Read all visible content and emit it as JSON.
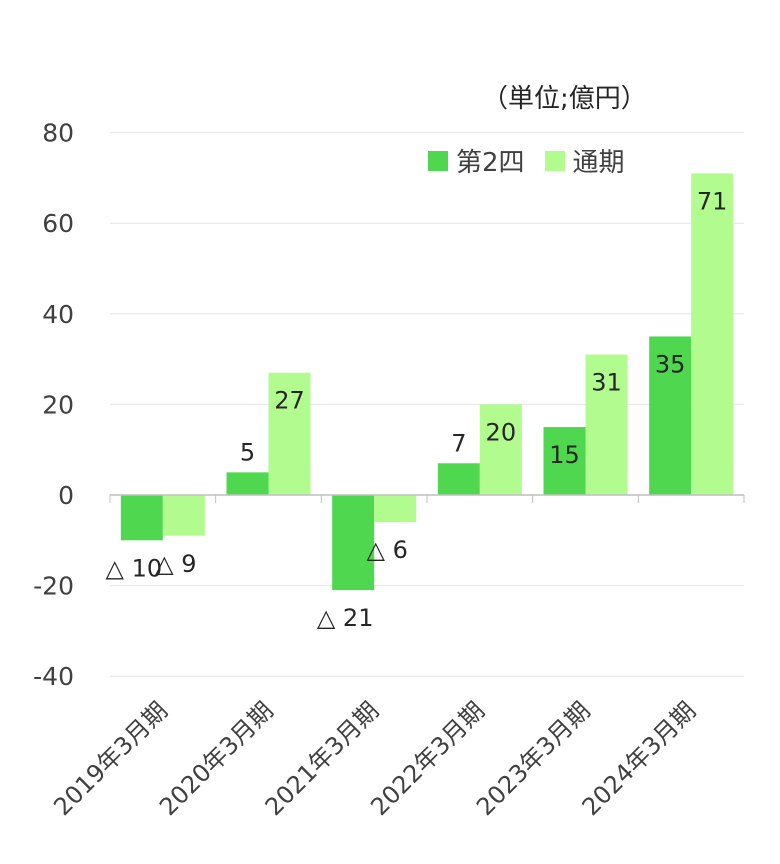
{
  "unit_label": "（単位;億円）",
  "colors": {
    "q2": "#4fd84f",
    "full": "#b2fc8f",
    "grid": "#e6e6e6",
    "axis": "#bfbfbf",
    "text": "#404040"
  },
  "chart_data": {
    "type": "bar",
    "categories": [
      "2019年3月期",
      "2020年3月期",
      "2021年3月期",
      "2022年3月期",
      "2023年3月期",
      "2024年3月期"
    ],
    "series": [
      {
        "name": "第2四",
        "values": [
          -10,
          5,
          -21,
          7,
          15,
          35
        ],
        "labels": [
          "△ 10",
          "5",
          "△ 21",
          "7",
          "15",
          "35"
        ]
      },
      {
        "name": "通期",
        "values": [
          -9,
          27,
          -6,
          20,
          31,
          71
        ],
        "labels": [
          "△ 9",
          "27",
          "△ 6",
          "20",
          "31",
          "71"
        ]
      }
    ],
    "ylim": [
      -40,
      80
    ],
    "yticks": [
      "80",
      "60",
      "40",
      "20",
      "0",
      "-20",
      "-40"
    ],
    "ytick_values": [
      80,
      60,
      40,
      20,
      0,
      -20,
      -40
    ],
    "grid": true,
    "legend_position": "top-right"
  }
}
